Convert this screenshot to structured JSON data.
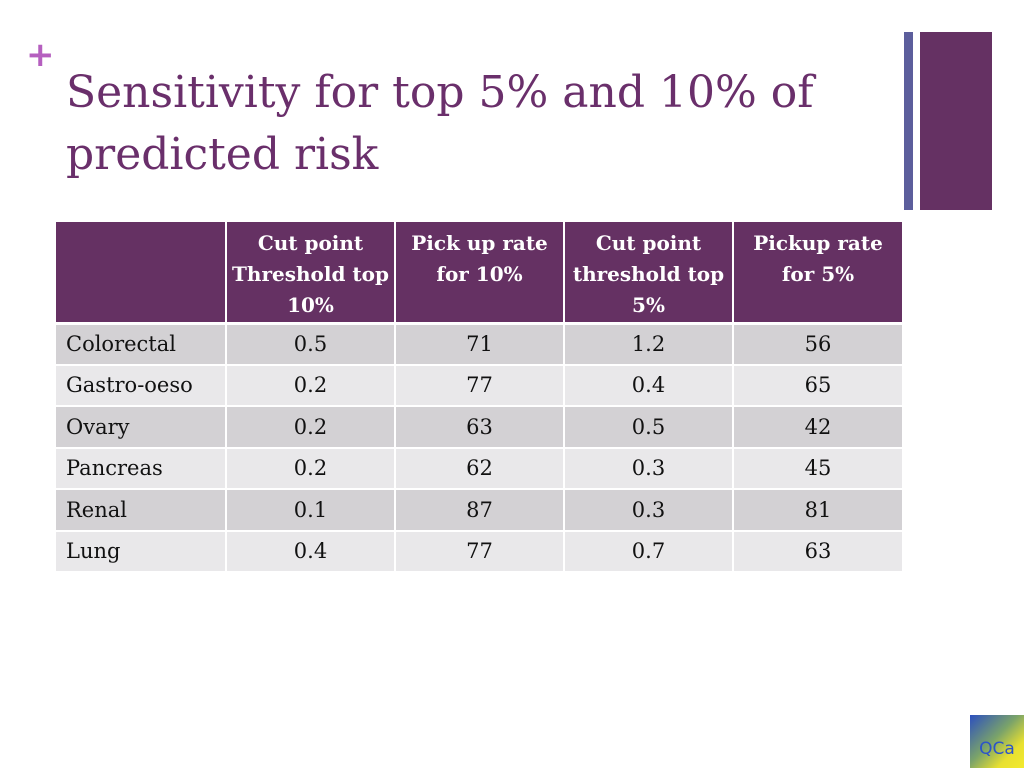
{
  "slide": {
    "plus_symbol": "+",
    "title": "Sensitivity for top 5% and 10% of predicted risk",
    "logo_text": "QCa"
  },
  "table": {
    "headers": [
      "",
      "Cut point Threshold top 10%",
      "Pick up rate for 10%",
      "Cut point threshold top 5%",
      "Pickup rate for 5%"
    ],
    "rows": [
      [
        "Colorectal",
        "0.5",
        "71",
        "1.2",
        "56"
      ],
      [
        "Gastro-oeso",
        "0.2",
        "77",
        "0.4",
        "65"
      ],
      [
        "Ovary",
        "0.2",
        "63",
        "0.5",
        "42"
      ],
      [
        "Pancreas",
        "0.2",
        "62",
        "0.3",
        "45"
      ],
      [
        "Renal",
        "0.1",
        "87",
        "0.3",
        "81"
      ],
      [
        "Lung",
        "0.4",
        "77",
        "0.7",
        "63"
      ]
    ]
  },
  "colors": {
    "title": "#6a2f6b",
    "header_bg": "#653163",
    "accent_bar_thin": "#5c5e9c",
    "accent_bar_thick": "#653163",
    "plus": "#b55fbf",
    "row_odd": "#d3d1d4",
    "row_even": "#e9e8ea"
  }
}
